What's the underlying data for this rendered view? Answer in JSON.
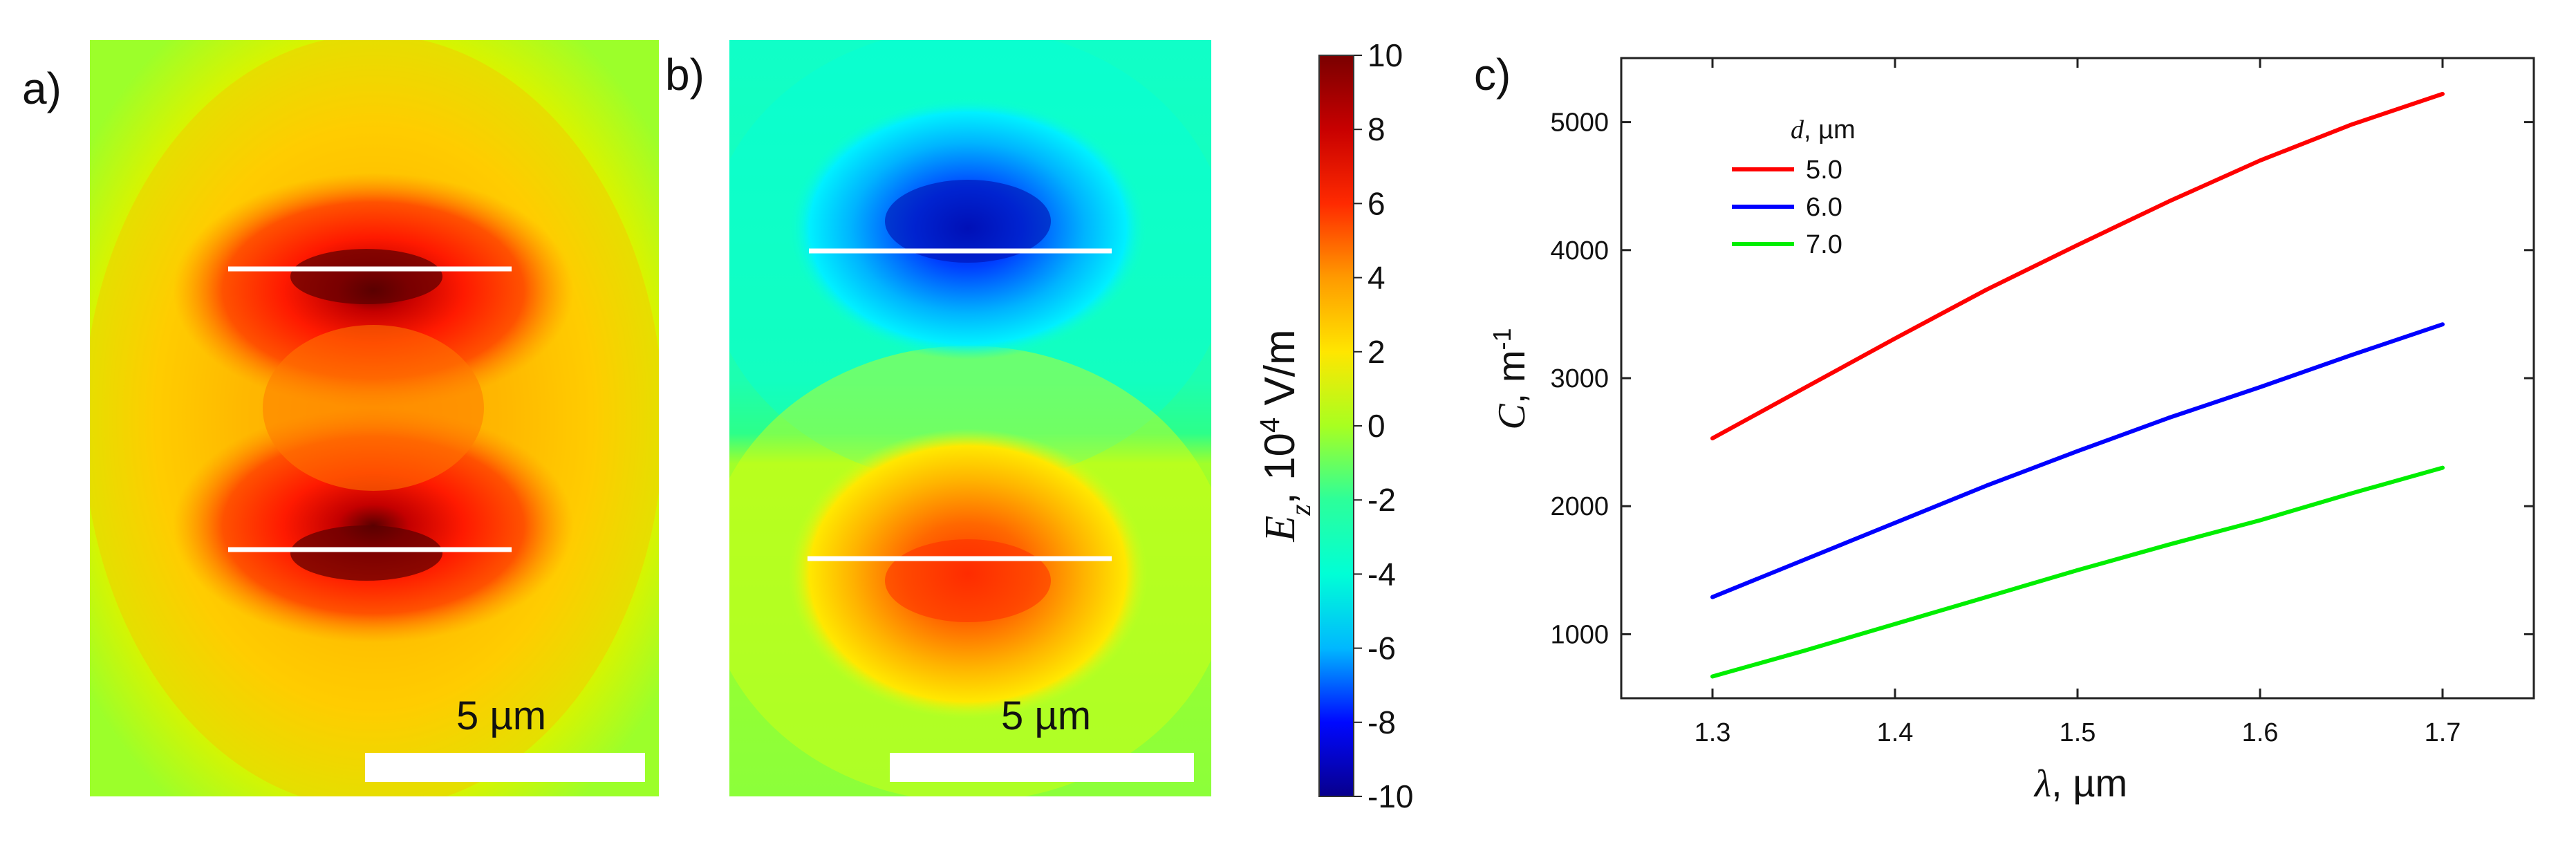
{
  "panels": {
    "a": {
      "label": "a)",
      "scale_bar_label": "5 µm"
    },
    "b": {
      "label": "b)",
      "scale_bar_label": "5 µm"
    }
  },
  "colorbar": {
    "label_symbol": "E",
    "label_subscript": "z",
    "label_unit_prefix": ", 10",
    "label_exponent": "4",
    "label_unit_suffix": " V/m",
    "min": -10,
    "max": 10,
    "ticks": [
      "10",
      "8",
      "6",
      "4",
      "2",
      "0",
      "-2",
      "-4",
      "-6",
      "-8",
      "-10"
    ],
    "colors": [
      "#08008c",
      "#0008ff",
      "#00b8ff",
      "#00ffd6",
      "#2cff9a",
      "#a8ff20",
      "#ffe600",
      "#ff9a00",
      "#ff2a00",
      "#c80000",
      "#7a0000"
    ]
  },
  "chart_data": {
    "type": "line",
    "panel_label": "c)",
    "title": "",
    "xlabel_symbol": "λ",
    "xlabel_unit": ", µm",
    "ylabel_symbol": "C",
    "ylabel_unit": ", m",
    "ylabel_exponent": "-1",
    "xlim": [
      1.25,
      1.75
    ],
    "ylim": [
      500,
      5500
    ],
    "x_ticks": [
      "1.3",
      "1.4",
      "1.5",
      "1.6",
      "1.7"
    ],
    "y_ticks": [
      "1000",
      "2000",
      "3000",
      "4000",
      "5000"
    ],
    "legend_title_symbol": "d",
    "legend_title_unit": ", µm",
    "legend_position": "top-left",
    "x": [
      1.3,
      1.35,
      1.4,
      1.45,
      1.5,
      1.55,
      1.6,
      1.65,
      1.7
    ],
    "series": [
      {
        "name": "5.0",
        "color": "#ff0000",
        "values": [
          2530,
          2920,
          3310,
          3690,
          4040,
          4380,
          4700,
          4980,
          5220
        ]
      },
      {
        "name": "6.0",
        "color": "#0000ff",
        "values": [
          1290,
          1580,
          1870,
          2160,
          2430,
          2690,
          2930,
          3180,
          3420
        ]
      },
      {
        "name": "7.0",
        "color": "#00ee00",
        "values": [
          670,
          870,
          1080,
          1290,
          1500,
          1700,
          1890,
          2100,
          2300
        ]
      }
    ]
  }
}
